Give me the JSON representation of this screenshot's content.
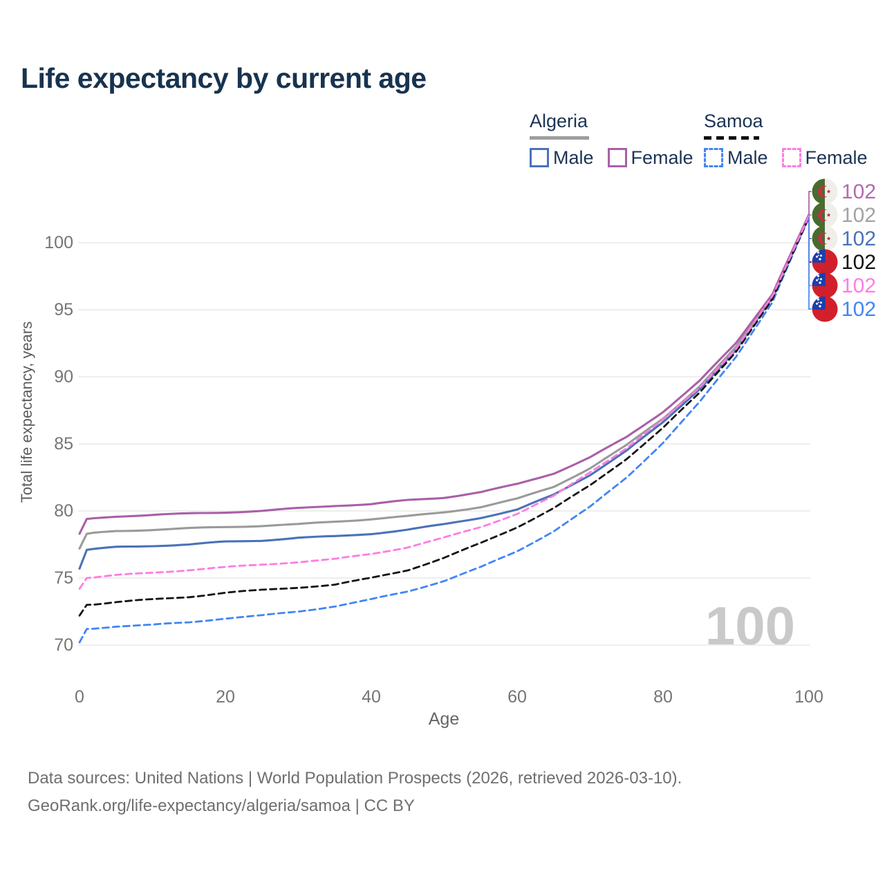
{
  "title": "Life expectancy by current age",
  "legend": {
    "algeria": {
      "label": "Algeria",
      "male": "Male",
      "female": "Female"
    },
    "samoa": {
      "label": "Samoa",
      "male": "Male",
      "female": "Female"
    }
  },
  "watermark": "100",
  "footer": {
    "line1": "Data sources: United Nations | World Population Prospects (2026, retrieved 2026-03-10).",
    "line2": "GeoRank.org/life-expectancy/algeria/samoa | CC BY"
  },
  "colors": {
    "title_text": "#17334f",
    "legend_text": "#1d3354",
    "tick_text": "#757575",
    "axis_title_text": "#5c5c5c",
    "gridline": "#e8e8e8",
    "watermark_text": "#c9c9c9",
    "algeria_underline": "#9e9e9e",
    "samoa_underline": "#101010"
  },
  "flags": {
    "algeria": {
      "green": "#4a6b2e",
      "white": "#efeeea",
      "red": "#c62d47"
    },
    "samoa": {
      "red": "#d1202c",
      "blue": "#1c3fae",
      "white": "#ffffff"
    }
  },
  "chart_data": {
    "type": "line",
    "title": "Life expectancy by current age",
    "xlabel": "Age",
    "ylabel": "Total life expectancy, years",
    "x": [
      0,
      1,
      5,
      10,
      15,
      20,
      25,
      30,
      35,
      40,
      45,
      50,
      55,
      60,
      65,
      70,
      75,
      80,
      85,
      90,
      95,
      100
    ],
    "xlim": [
      0,
      100
    ],
    "ylim": [
      70,
      100
    ],
    "xticks": [
      0,
      20,
      40,
      60,
      80,
      100
    ],
    "yticks": [
      70,
      75,
      80,
      85,
      90,
      95,
      100
    ],
    "grid": "horizontal",
    "legend_position": "top-right",
    "series": [
      {
        "id": "algeria-male",
        "country": "Algeria",
        "sex": "Male",
        "color": "#4a72b8",
        "dash": "solid",
        "values": [
          75.7,
          77.1,
          77.3,
          77.4,
          77.5,
          77.7,
          77.8,
          78.0,
          78.1,
          78.3,
          78.6,
          79.0,
          79.5,
          80.1,
          81.2,
          82.7,
          84.5,
          86.6,
          89.1,
          92.0,
          95.9,
          102.0
        ],
        "end_label": "102"
      },
      {
        "id": "algeria-all",
        "country": "Algeria",
        "sex": "Both",
        "color": "#9a9a9a",
        "dash": "solid",
        "values": [
          77.2,
          78.3,
          78.5,
          78.6,
          78.7,
          78.8,
          78.9,
          79.0,
          79.2,
          79.4,
          79.6,
          79.9,
          80.3,
          80.9,
          81.8,
          83.2,
          84.9,
          86.9,
          89.3,
          92.2,
          96.0,
          102.0
        ],
        "end_label": "102"
      },
      {
        "id": "algeria-female",
        "country": "Algeria",
        "sex": "Female",
        "color": "#aa5fa8",
        "dash": "solid",
        "values": [
          78.3,
          79.4,
          79.6,
          79.7,
          79.8,
          79.9,
          80.0,
          80.2,
          80.4,
          80.5,
          80.8,
          81.0,
          81.4,
          82.0,
          82.8,
          84.0,
          85.5,
          87.4,
          89.7,
          92.5,
          96.2,
          102.1
        ],
        "end_label": "102"
      },
      {
        "id": "samoa-male",
        "country": "Samoa",
        "sex": "Male",
        "color": "#4285f4",
        "dash": "dashed",
        "values": [
          70.2,
          71.2,
          71.4,
          71.5,
          71.7,
          72.0,
          72.2,
          72.5,
          72.9,
          73.4,
          74.0,
          74.8,
          75.8,
          77.0,
          78.5,
          80.3,
          82.5,
          85.1,
          88.1,
          91.5,
          95.6,
          101.9
        ],
        "end_label": "102"
      },
      {
        "id": "samoa-all",
        "country": "Samoa",
        "sex": "Both",
        "color": "#141414",
        "dash": "dashed",
        "values": [
          72.2,
          73.0,
          73.2,
          73.4,
          73.6,
          73.9,
          74.1,
          74.3,
          74.5,
          75.0,
          75.6,
          76.5,
          77.6,
          78.8,
          80.2,
          81.9,
          83.9,
          86.2,
          88.8,
          91.9,
          95.8,
          101.9
        ],
        "end_label": "102"
      },
      {
        "id": "samoa-female",
        "country": "Samoa",
        "sex": "Female",
        "color": "#ff7ce1",
        "dash": "dashed",
        "values": [
          74.2,
          75.0,
          75.2,
          75.4,
          75.6,
          75.8,
          76.0,
          76.2,
          76.4,
          76.8,
          77.3,
          78.0,
          78.8,
          79.8,
          81.1,
          82.9,
          84.7,
          86.8,
          89.2,
          92.1,
          96.0,
          102.0
        ],
        "end_label": "102"
      }
    ],
    "end_label_order": [
      "algeria-female",
      "algeria-all",
      "algeria-male",
      "samoa-all",
      "samoa-female",
      "samoa-male"
    ],
    "end_label_text_colors": {
      "algeria-female": "#b16bb0",
      "algeria-all": "#a3a3a3",
      "algeria-male": "#4a72b8",
      "samoa-all": "#111111",
      "samoa-female": "#ff7ce1",
      "samoa-male": "#4285f4"
    }
  }
}
